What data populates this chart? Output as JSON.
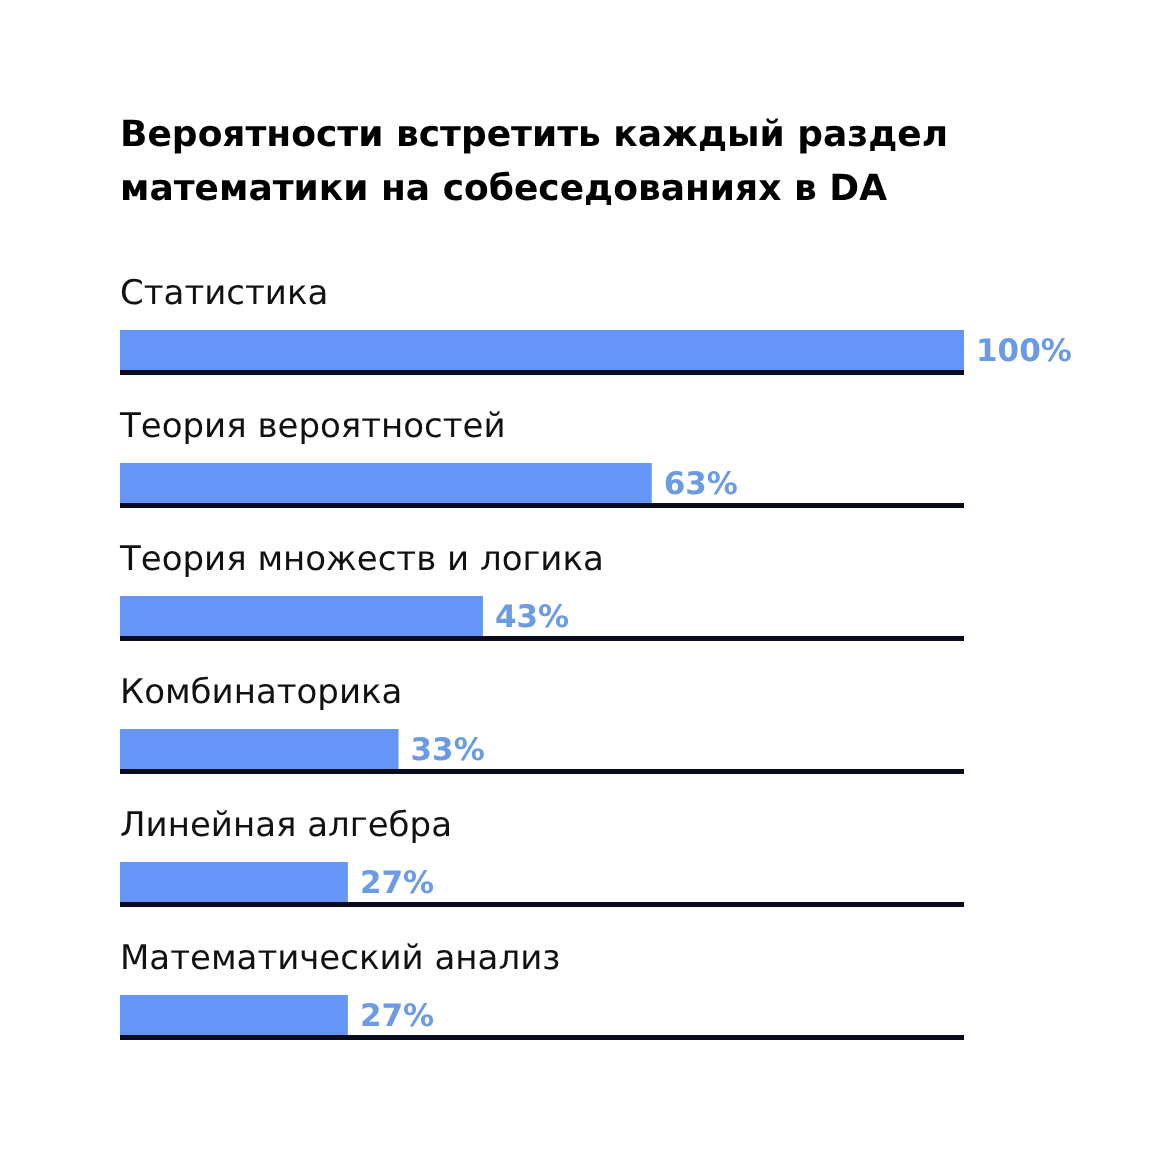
{
  "chart_data": {
    "type": "bar",
    "orientation": "horizontal",
    "title": "Вероятности встретить каждый раздел математики на собеседованиях в DA",
    "categories": [
      "Статистика",
      "Теория вероятностей",
      "Теория множеств и логика",
      "Комбинаторика",
      "Линейная алгебра",
      "Математический анализ"
    ],
    "values": [
      100,
      63,
      43,
      33,
      27,
      27
    ],
    "value_labels": [
      "100%",
      "63%",
      "43%",
      "33%",
      "27%",
      "27%"
    ],
    "color": "#6596f7"
  }
}
